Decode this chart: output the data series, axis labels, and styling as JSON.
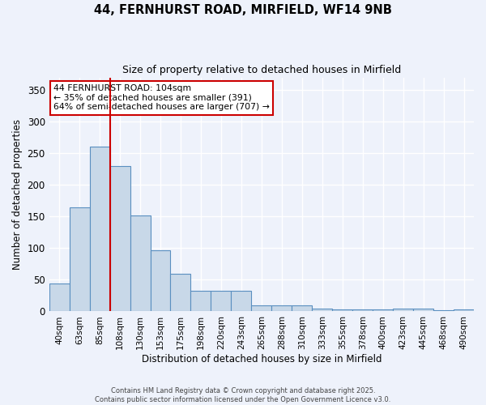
{
  "title_line1": "44, FERNHURST ROAD, MIRFIELD, WF14 9NB",
  "title_line2": "Size of property relative to detached houses in Mirfield",
  "xlabel": "Distribution of detached houses by size in Mirfield",
  "ylabel": "Number of detached properties",
  "bar_labels": [
    "40sqm",
    "63sqm",
    "85sqm",
    "108sqm",
    "130sqm",
    "153sqm",
    "175sqm",
    "198sqm",
    "220sqm",
    "243sqm",
    "265sqm",
    "288sqm",
    "310sqm",
    "333sqm",
    "355sqm",
    "378sqm",
    "400sqm",
    "423sqm",
    "445sqm",
    "468sqm",
    "490sqm"
  ],
  "bar_values": [
    44,
    165,
    260,
    230,
    152,
    97,
    60,
    33,
    33,
    33,
    10,
    9,
    10,
    4,
    3,
    3,
    3,
    5,
    5,
    2,
    3
  ],
  "bar_color": "#c8d8e8",
  "bar_edge_color": "#5a8fc0",
  "vline_x_index": 2.5,
  "vline_color": "#cc0000",
  "annotation_text": "44 FERNHURST ROAD: 104sqm\n← 35% of detached houses are smaller (391)\n64% of semi-detached houses are larger (707) →",
  "annotation_box_color": "#ffffff",
  "annotation_box_edge": "#cc0000",
  "ylim": [
    0,
    370
  ],
  "yticks": [
    0,
    50,
    100,
    150,
    200,
    250,
    300,
    350
  ],
  "bg_color": "#eef2fb",
  "grid_color": "#ffffff",
  "footnote": "Contains HM Land Registry data © Crown copyright and database right 2025.\nContains public sector information licensed under the Open Government Licence v3.0."
}
